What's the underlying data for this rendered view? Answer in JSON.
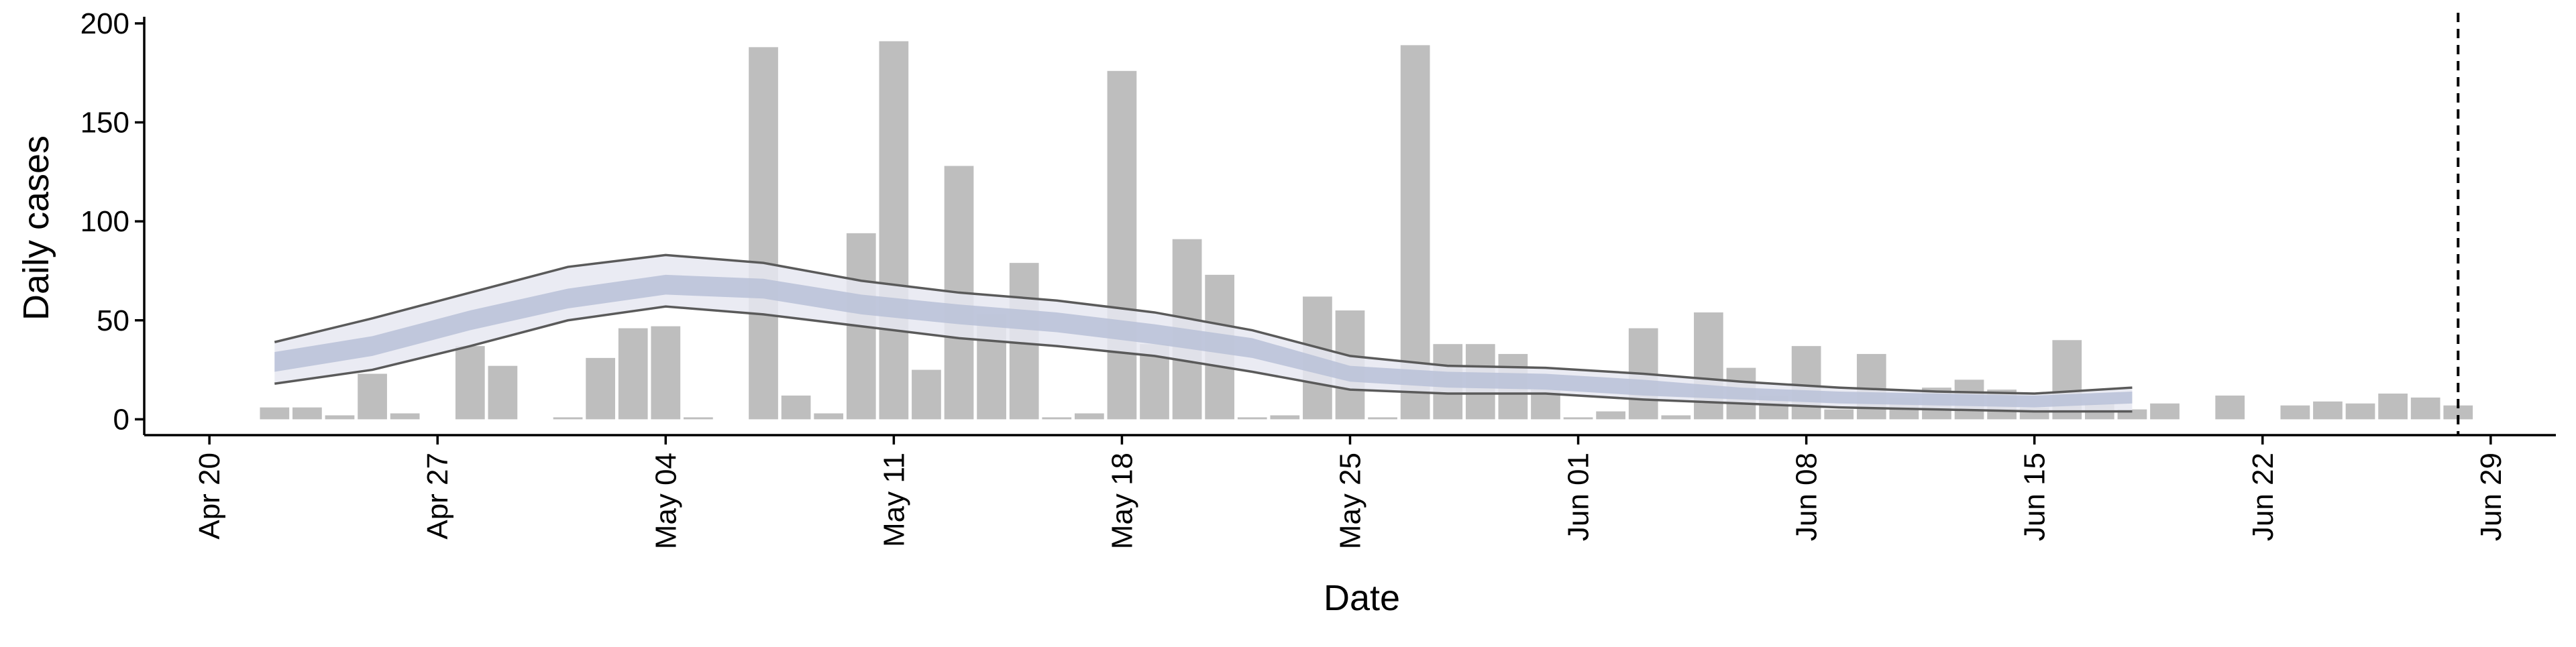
{
  "chart_data": {
    "type": "bar",
    "title": null,
    "x_label": "Date",
    "y_label": "Daily cases",
    "x": [
      "Apr 22",
      "Apr 23",
      "Apr 24",
      "Apr 25",
      "Apr 26",
      "Apr 27",
      "Apr 28",
      "Apr 29",
      "Apr 30",
      "May 01",
      "May 02",
      "May 03",
      "May 04",
      "May 05",
      "May 06",
      "May 07",
      "May 08",
      "May 09",
      "May 10",
      "May 11",
      "May 12",
      "May 13",
      "May 14",
      "May 15",
      "May 16",
      "May 17",
      "May 18",
      "May 19",
      "May 20",
      "May 21",
      "May 22",
      "May 23",
      "May 24",
      "May 25",
      "May 26",
      "May 27",
      "May 28",
      "May 29",
      "May 30",
      "May 31",
      "Jun 01",
      "Jun 02",
      "Jun 03",
      "Jun 04",
      "Jun 05",
      "Jun 06",
      "Jun 07",
      "Jun 08",
      "Jun 09",
      "Jun 10",
      "Jun 11",
      "Jun 12",
      "Jun 13",
      "Jun 14",
      "Jun 15",
      "Jun 16",
      "Jun 17",
      "Jun 18",
      "Jun 19",
      "Jun 20",
      "Jun 21",
      "Jun 22",
      "Jun 23",
      "Jun 24",
      "Jun 25",
      "Jun 26",
      "Jun 27",
      "Jun 28"
    ],
    "values": [
      6,
      6,
      2,
      23,
      3,
      0,
      37,
      27,
      0,
      1,
      31,
      46,
      47,
      1,
      0,
      188,
      12,
      3,
      94,
      191,
      25,
      128,
      53,
      79,
      1,
      3,
      176,
      38,
      91,
      73,
      1,
      2,
      62,
      55,
      1,
      189,
      38,
      38,
      33,
      15,
      1,
      4,
      46,
      2,
      54,
      26,
      12,
      37,
      5,
      33,
      11,
      16,
      20,
      15,
      6,
      40,
      8,
      5,
      8,
      0,
      12,
      0,
      7,
      9,
      8,
      13,
      11,
      7
    ],
    "color": "#bebebe",
    "band_x": [
      "Apr 22",
      "Apr 25",
      "Apr 28",
      "May 01",
      "May 04",
      "May 07",
      "May 10",
      "May 13",
      "May 16",
      "May 19",
      "May 22",
      "May 25",
      "May 28",
      "May 31",
      "Jun 03",
      "Jun 06",
      "Jun 09",
      "Jun 12",
      "Jun 15",
      "Jun 18"
    ],
    "band_outer": {
      "color": "#e6e8f1",
      "line_color": "#5a5a5a",
      "lower": [
        18,
        25,
        37,
        50,
        57,
        53,
        47,
        41,
        37,
        32,
        24,
        15,
        13,
        13,
        10,
        8,
        6,
        5,
        4,
        4
      ],
      "upper": [
        39,
        51,
        64,
        77,
        83,
        79,
        70,
        64,
        60,
        54,
        45,
        32,
        27,
        26,
        23,
        19,
        16,
        14,
        13,
        16
      ]
    },
    "band_inner": {
      "color": "#b8c1d7",
      "lower": [
        24,
        32,
        45,
        56,
        63,
        61,
        53,
        48,
        44,
        38,
        31,
        19,
        16,
        15,
        12,
        10,
        8,
        7,
        6,
        8
      ],
      "upper": [
        34,
        42,
        55,
        66,
        73,
        71,
        63,
        58,
        54,
        48,
        41,
        27,
        24,
        23,
        20,
        16,
        14,
        13,
        12,
        14
      ]
    },
    "vline": "Jun 28",
    "xlim": [
      "Apr 18",
      "Jul 01"
    ],
    "xticks": [
      "Apr 20",
      "Apr 27",
      "May 04",
      "May 11",
      "May 18",
      "May 25",
      "Jun 01",
      "Jun 08",
      "Jun 15",
      "Jun 22",
      "Jun 29"
    ],
    "ylim": [
      -8,
      202
    ],
    "yticks": [
      0,
      50,
      100,
      150,
      200
    ]
  }
}
